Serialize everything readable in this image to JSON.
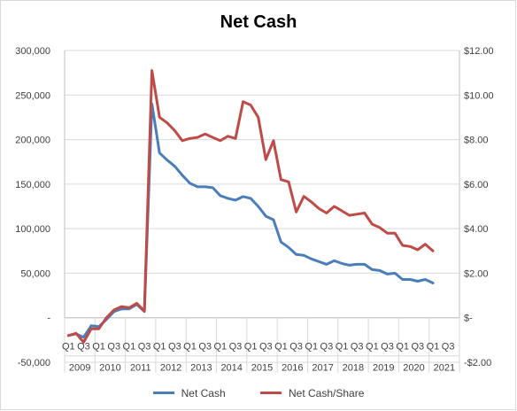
{
  "chart_data": {
    "type": "line",
    "title": "Net Cash",
    "xlabel": "",
    "ylabel": "",
    "grid": true,
    "legend_position": "bottom",
    "y_left": {
      "min": -50000,
      "max": 300000,
      "ticks": [
        -50000,
        0,
        50000,
        100000,
        150000,
        200000,
        250000,
        300000
      ],
      "tick_labels": [
        "-50,000",
        "-",
        "50,000",
        "100,000",
        "150,000",
        "200,000",
        "250,000",
        "300,000"
      ]
    },
    "y_right": {
      "min": -2,
      "max": 12,
      "ticks": [
        -2,
        0,
        2,
        4,
        6,
        8,
        10,
        12
      ],
      "tick_labels": [
        "-$2.00",
        "$-",
        "$2.00",
        "$4.00",
        "$6.00",
        "$8.00",
        "$10.00",
        "$12.00"
      ]
    },
    "years": [
      "2009",
      "2010",
      "2011",
      "2012",
      "2013",
      "2014",
      "2015",
      "2016",
      "2017",
      "2018",
      "2019",
      "2020",
      "2021"
    ],
    "quarter_labels": [
      "Q1",
      "Q3"
    ],
    "x": [
      "2009 Q1",
      "2009 Q2",
      "2009 Q3",
      "2009 Q4",
      "2010 Q1",
      "2010 Q2",
      "2010 Q3",
      "2010 Q4",
      "2011 Q1",
      "2011 Q2",
      "2011 Q3",
      "2011 Q4",
      "2012 Q1",
      "2012 Q2",
      "2012 Q3",
      "2012 Q4",
      "2013 Q1",
      "2013 Q2",
      "2013 Q3",
      "2013 Q4",
      "2014 Q1",
      "2014 Q2",
      "2014 Q3",
      "2014 Q4",
      "2015 Q1",
      "2015 Q2",
      "2015 Q3",
      "2015 Q4",
      "2016 Q1",
      "2016 Q2",
      "2016 Q3",
      "2016 Q4",
      "2017 Q1",
      "2017 Q2",
      "2017 Q3",
      "2017 Q4",
      "2018 Q1",
      "2018 Q2",
      "2018 Q3",
      "2018 Q4",
      "2019 Q1",
      "2019 Q2",
      "2019 Q3",
      "2019 Q4",
      "2020 Q1",
      "2020 Q2",
      "2020 Q3",
      "2020 Q4",
      "2021 Q1"
    ],
    "series": [
      {
        "name": "Net Cash",
        "axis": "left",
        "color": "#4a7ebb",
        "values": [
          -20000,
          -18000,
          -22000,
          -9000,
          -10000,
          -2000,
          7000,
          10000,
          10000,
          15000,
          7000,
          240000,
          185000,
          177000,
          170000,
          160000,
          151000,
          147000,
          147000,
          146000,
          137000,
          134000,
          132000,
          136000,
          134000,
          125000,
          114000,
          110000,
          85000,
          79000,
          71000,
          70000,
          66000,
          63000,
          60000,
          64000,
          61000,
          59000,
          60000,
          60000,
          54000,
          53000,
          49000,
          50000,
          43000,
          43000,
          41000,
          43000,
          39000
        ]
      },
      {
        "name": "Net Cash/Share",
        "axis": "right",
        "color": "#be4b48",
        "values": [
          -0.8,
          -0.7,
          -1.1,
          -0.5,
          -0.5,
          0.0,
          0.35,
          0.5,
          0.45,
          0.65,
          0.3,
          11.1,
          9.0,
          8.75,
          8.4,
          7.95,
          8.05,
          8.1,
          8.25,
          8.1,
          7.95,
          8.15,
          8.05,
          9.7,
          9.55,
          9.0,
          7.1,
          7.95,
          6.2,
          6.1,
          4.75,
          5.45,
          5.2,
          4.9,
          4.7,
          5.0,
          4.8,
          4.6,
          4.65,
          4.7,
          4.2,
          4.05,
          3.8,
          3.8,
          3.25,
          3.2,
          3.05,
          3.3,
          3.0
        ]
      }
    ]
  }
}
